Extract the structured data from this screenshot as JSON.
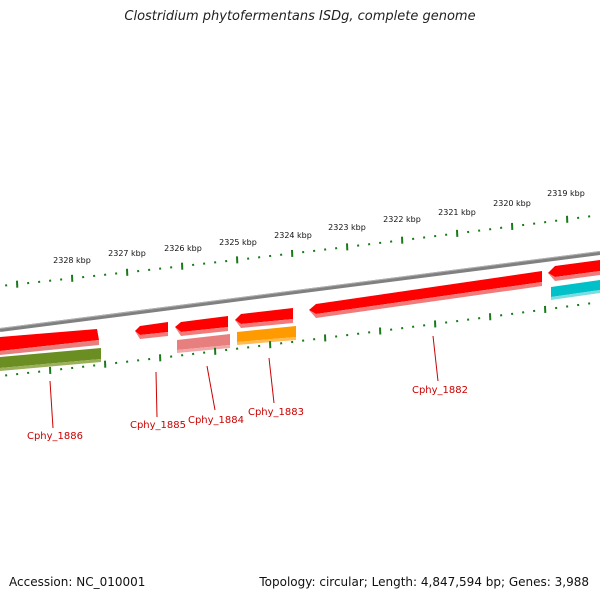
{
  "header": {
    "title": "Clostridium phytofermentans ISDg, complete genome"
  },
  "footer": {
    "accession": "Accession: NC_010001",
    "stats": "Topology: circular; Length: 4,847,594 bp; Genes: 3,988"
  },
  "colors": {
    "ticks": "#1a7a1a",
    "backbone": "#808080",
    "gene_red": "#ff0000",
    "gene_pink": "#e87f7f",
    "gene_orange": "#ff9a00",
    "gene_olive": "#6b8e23",
    "gene_cyan": "#00c0c8",
    "label": "#cc0000"
  },
  "scale": {
    "outer_labels": [
      "2328 kbp",
      "2327 kbp",
      "2326 kbp",
      "2325 kbp",
      "2324 kbp",
      "2323 kbp",
      "2322 kbp",
      "2321 kbp",
      "2320 kbp",
      "2319 kbp"
    ]
  },
  "genes": {
    "labels": [
      "Cphy_1886",
      "Cphy_1885",
      "Cphy_1884",
      "Cphy_1883",
      "Cphy_1882"
    ]
  }
}
